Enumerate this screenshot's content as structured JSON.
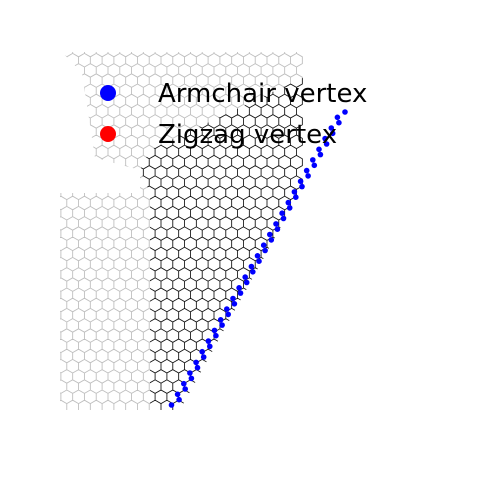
{
  "legend": {
    "items": [
      {
        "label": "Armchair vertex",
        "color": "#0000ff"
      },
      {
        "label": "Zigzag vertex",
        "color": "#ff0000"
      }
    ]
  },
  "colors": {
    "background": "#ffffff",
    "lattice_light": "#bfbfbf",
    "lattice_dark": "#111111",
    "armchair_vertex": "#0000ff",
    "zigzag_vertex": "#ff0000"
  }
}
